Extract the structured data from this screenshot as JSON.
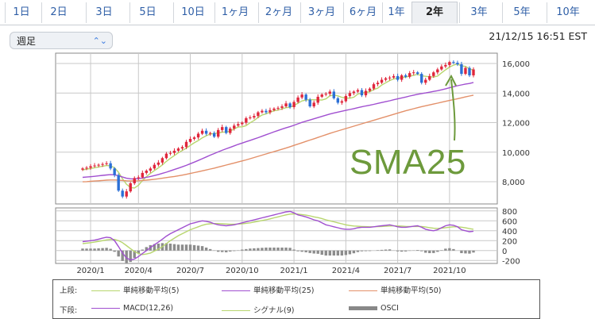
{
  "tabs": [
    {
      "label": "1日"
    },
    {
      "label": "2日"
    },
    {
      "label": "3日"
    },
    {
      "label": "5日"
    },
    {
      "label": "10日"
    },
    {
      "label": "1ヶ月"
    },
    {
      "label": "2ヶ月"
    },
    {
      "label": "3ヶ月"
    },
    {
      "label": "6ヶ月"
    },
    {
      "label": "1年"
    },
    {
      "label": "2年",
      "active": true
    },
    {
      "label": "3年"
    },
    {
      "label": "5年"
    },
    {
      "label": "10年"
    }
  ],
  "interval_select": {
    "value": "週足"
  },
  "timestamp": "21/12/15 16:51 EST",
  "annotation": {
    "text": "SMA25",
    "color": "#6d9a3c"
  },
  "legend": {
    "upper_label": "上段:",
    "lower_label": "下段:",
    "upper": [
      {
        "label": "単純移動平均(5)",
        "color": "#b8d66e"
      },
      {
        "label": "単純移動平均(25)",
        "color": "#a04fd0"
      },
      {
        "label": "単純移動平均(50)",
        "color": "#e39069"
      }
    ],
    "lower": [
      {
        "label": "MACD(12,26)",
        "color": "#a04fd0"
      },
      {
        "label": "シグナル(9)",
        "color": "#b8d66e"
      },
      {
        "label": "OSCI",
        "color": "#888888"
      }
    ]
  },
  "chart_data": [
    {
      "type": "candlestick",
      "x_labels": [
        "2020/1",
        "2020/4",
        "2020/7",
        "2020/10",
        "2021/1",
        "2021/4",
        "2021/7",
        "2021/10"
      ],
      "y_ticks": [
        "8,000",
        "10,000",
        "12,000",
        "14,000",
        "16,000"
      ],
      "ylim": [
        6500,
        16700
      ],
      "grid": true,
      "weekly_close": [
        8900,
        8950,
        9050,
        9100,
        9150,
        9200,
        9250,
        8900,
        8450,
        7400,
        7000,
        7350,
        7900,
        8250,
        8300,
        8600,
        8750,
        8900,
        9150,
        9300,
        9600,
        9900,
        9950,
        10100,
        10250,
        10350,
        10700,
        10900,
        11000,
        11250,
        11450,
        11250,
        11300,
        11050,
        11500,
        11700,
        11300,
        11600,
        11800,
        11900,
        12000,
        12300,
        12350,
        12450,
        12700,
        12800,
        12700,
        12850,
        12950,
        13000,
        13100,
        13300,
        13050,
        13400,
        13700,
        13900,
        13550,
        13100,
        13350,
        13750,
        13900,
        13950,
        14100,
        13650,
        13350,
        13450,
        13800,
        14000,
        14100,
        14200,
        13850,
        14150,
        14300,
        14600,
        14700,
        14900,
        15000,
        15050,
        15150,
        14900,
        15200,
        15100,
        15350,
        15400,
        15300,
        14700,
        14900,
        15150,
        15400,
        15600,
        15800,
        15900,
        16100,
        16050,
        15950,
        15300,
        15700,
        15200,
        15600
      ],
      "series": [
        {
          "name": "単純移動平均(5)",
          "values": [
            8800,
            8850,
            8900,
            8950,
            9000,
            9050,
            9100,
            9080,
            8940,
            8640,
            8200,
            7830,
            7610,
            7580,
            7760,
            8080,
            8350,
            8560,
            8760,
            8940,
            9140,
            9380,
            9580,
            9770,
            9960,
            10120,
            10270,
            10460,
            10640,
            10790,
            10970,
            11110,
            11230,
            11260,
            11310,
            11360,
            11370,
            11430,
            11580,
            11700,
            11720,
            11800,
            11990,
            12150,
            12350,
            12520,
            12600,
            12700,
            12800,
            12850,
            12930,
            13010,
            13040,
            13160,
            13310,
            13470,
            13530,
            13550,
            13550,
            13540,
            13530,
            13610,
            13810,
            13870,
            13810,
            13710,
            13670,
            13650,
            13720,
            13930,
            14000,
            14040,
            14090,
            14240,
            14330,
            14540,
            14700,
            14850,
            14960,
            15000,
            15060,
            15080,
            15150,
            15200,
            15270,
            15170,
            15130,
            15100,
            15090,
            15150,
            15370,
            15570,
            15760,
            15890,
            15970,
            15830,
            15810,
            15630,
            15560
          ]
        },
        {
          "name": "単純移動平均(25)",
          "values": [
            8300,
            8320,
            8340,
            8370,
            8400,
            8430,
            8460,
            8480,
            8470,
            8410,
            8320,
            8240,
            8200,
            8190,
            8210,
            8250,
            8300,
            8360,
            8420,
            8490,
            8570,
            8650,
            8740,
            8830,
            8920,
            9010,
            9110,
            9220,
            9330,
            9440,
            9560,
            9680,
            9800,
            9910,
            10020,
            10130,
            10230,
            10330,
            10430,
            10530,
            10620,
            10710,
            10800,
            10890,
            10980,
            11080,
            11180,
            11280,
            11380,
            11470,
            11560,
            11650,
            11730,
            11820,
            11920,
            12020,
            12100,
            12180,
            12260,
            12340,
            12420,
            12500,
            12580,
            12650,
            12710,
            12770,
            12830,
            12890,
            12950,
            13010,
            13070,
            13130,
            13180,
            13240,
            13300,
            13360,
            13420,
            13480,
            13550,
            13610,
            13670,
            13730,
            13800,
            13860,
            13920,
            13970,
            14010,
            14060,
            14110,
            14160,
            14220,
            14290,
            14360,
            14430,
            14500,
            14550,
            14610,
            14650,
            14720
          ]
        },
        {
          "name": "単純移動平均(50)",
          "values": [
            8000,
            8010,
            8030,
            8050,
            8070,
            8090,
            8110,
            8120,
            8120,
            8110,
            8090,
            8070,
            8060,
            8060,
            8070,
            8090,
            8110,
            8140,
            8170,
            8200,
            8240,
            8280,
            8320,
            8360,
            8400,
            8450,
            8500,
            8560,
            8620,
            8680,
            8740,
            8800,
            8860,
            8920,
            8990,
            9060,
            9130,
            9200,
            9270,
            9340,
            9410,
            9480,
            9560,
            9640,
            9720,
            9800,
            9880,
            9960,
            10040,
            10120,
            10200,
            10280,
            10370,
            10460,
            10550,
            10640,
            10730,
            10820,
            10910,
            11000,
            11090,
            11180,
            11270,
            11360,
            11440,
            11520,
            11600,
            11680,
            11760,
            11840,
            11920,
            12000,
            12080,
            12160,
            12240,
            12320,
            12400,
            12480,
            12560,
            12640,
            12720,
            12800,
            12870,
            12940,
            13010,
            13080,
            13140,
            13200,
            13260,
            13320,
            13380,
            13440,
            13500,
            13560,
            13620,
            13680,
            13740,
            13800,
            13860
          ]
        }
      ]
    },
    {
      "type": "line",
      "name": "MACD panel",
      "y_ticks": [
        "-200",
        "0",
        "200",
        "400",
        "600",
        "800"
      ],
      "ylim": [
        -260,
        860
      ],
      "grid": true,
      "series": [
        {
          "name": "MACD(12,26)",
          "values": [
            180,
            190,
            200,
            210,
            230,
            250,
            270,
            260,
            200,
            80,
            -50,
            -150,
            -190,
            -170,
            -120,
            -60,
            0,
            60,
            120,
            170,
            230,
            290,
            340,
            380,
            420,
            460,
            500,
            540,
            560,
            580,
            600,
            590,
            570,
            540,
            520,
            510,
            500,
            510,
            520,
            540,
            560,
            580,
            600,
            620,
            640,
            660,
            680,
            700,
            720,
            740,
            760,
            780,
            790,
            760,
            720,
            700,
            680,
            650,
            620,
            600,
            560,
            520,
            500,
            480,
            460,
            440,
            430,
            430,
            440,
            460,
            470,
            470,
            470,
            480,
            490,
            500,
            510,
            520,
            500,
            480,
            470,
            470,
            480,
            490,
            500,
            470,
            430,
            410,
            400,
            420,
            460,
            500,
            520,
            510,
            480,
            420,
            400,
            380,
            390
          ]
        },
        {
          "name": "シグナル(9)",
          "values": [
            140,
            150,
            160,
            170,
            185,
            200,
            215,
            225,
            225,
            200,
            160,
            100,
            40,
            -20,
            -60,
            -80,
            -70,
            -50,
            -10,
            30,
            80,
            140,
            200,
            250,
            300,
            340,
            380,
            420,
            450,
            480,
            510,
            530,
            540,
            545,
            545,
            540,
            535,
            530,
            530,
            535,
            540,
            550,
            560,
            575,
            590,
            605,
            620,
            640,
            660,
            680,
            700,
            720,
            735,
            740,
            735,
            725,
            715,
            700,
            680,
            665,
            645,
            620,
            600,
            580,
            560,
            540,
            520,
            505,
            495,
            490,
            485,
            482,
            480,
            480,
            482,
            486,
            490,
            496,
            498,
            496,
            492,
            488,
            486,
            486,
            488,
            484,
            474,
            462,
            450,
            446,
            452,
            462,
            472,
            480,
            480,
            472,
            458,
            442,
            430
          ]
        },
        {
          "name": "OSCI",
          "values": [
            40,
            40,
            40,
            40,
            45,
            50,
            55,
            35,
            -25,
            -120,
            -210,
            -250,
            -230,
            -150,
            -60,
            20,
            70,
            110,
            130,
            140,
            150,
            150,
            140,
            130,
            120,
            120,
            120,
            120,
            110,
            100,
            90,
            60,
            30,
            -5,
            -25,
            -30,
            -35,
            -20,
            -10,
            5,
            20,
            30,
            40,
            45,
            50,
            55,
            60,
            60,
            60,
            60,
            60,
            60,
            55,
            20,
            -15,
            -25,
            -35,
            -50,
            -60,
            -65,
            -85,
            -100,
            -100,
            -100,
            -100,
            -100,
            -90,
            -75,
            -55,
            -30,
            -15,
            -12,
            -10,
            0,
            8,
            14,
            20,
            24,
            2,
            -16,
            -22,
            -18,
            -6,
            4,
            12,
            -14,
            -44,
            -52,
            -50,
            -26,
            8,
            38,
            48,
            30,
            0,
            -52,
            -58,
            -62,
            -40
          ]
        }
      ]
    }
  ]
}
